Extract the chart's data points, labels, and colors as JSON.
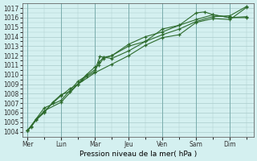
{
  "background_color": "#d4f0f0",
  "grid_color": "#aacccc",
  "line_color": "#2d6b2d",
  "ylabel_values": [
    1004,
    1005,
    1006,
    1007,
    1008,
    1009,
    1010,
    1011,
    1012,
    1013,
    1014,
    1015,
    1016,
    1017
  ],
  "ylim": [
    1003.5,
    1017.5
  ],
  "x_tick_positions": [
    0,
    1,
    2,
    3,
    4,
    5,
    6
  ],
  "x_tick_labels": [
    "Mer",
    "Lun",
    "Mar",
    "Jeu",
    "Ven",
    "Sam",
    "Dim"
  ],
  "xlabel": "Pression niveau de la mer( hPa )",
  "series": [
    {
      "x": [
        0.0,
        0.12,
        0.25,
        0.5,
        0.75,
        1.0,
        1.25,
        1.5,
        1.62,
        1.75,
        2.0,
        2.12,
        2.25,
        2.5,
        3.0,
        3.5,
        4.0,
        4.5,
        5.0,
        5.5,
        6.0,
        6.5
      ],
      "y": [
        1004.1,
        1004.5,
        1005.3,
        1006.1,
        1007.0,
        1007.8,
        1008.5,
        1009.0,
        1009.5,
        1010.0,
        1010.8,
        1011.0,
        1011.7,
        1012.0,
        1013.0,
        1013.5,
        1014.2,
        1014.8,
        1015.6,
        1016.1,
        1016.2,
        1017.2
      ]
    },
    {
      "x": [
        0.0,
        0.12,
        0.25,
        0.5,
        0.75,
        1.0,
        1.25,
        1.5,
        1.75,
        2.0,
        2.12,
        2.25,
        2.5,
        3.0,
        3.5,
        4.0,
        4.5,
        5.0,
        5.5,
        6.0,
        6.5
      ],
      "y": [
        1004.1,
        1004.6,
        1005.2,
        1006.0,
        1007.1,
        1007.9,
        1008.2,
        1009.0,
        1009.8,
        1010.3,
        1011.3,
        1011.8,
        1012.0,
        1013.2,
        1014.0,
        1014.5,
        1015.2,
        1015.8,
        1016.3,
        1016.0,
        1016.1
      ]
    },
    {
      "x": [
        0.0,
        0.5,
        1.0,
        1.5,
        2.0,
        2.15,
        2.5,
        3.0,
        3.5,
        4.0,
        4.5,
        5.0,
        5.25,
        5.5,
        6.0,
        6.5
      ],
      "y": [
        1004.1,
        1006.5,
        1007.3,
        1009.3,
        1010.5,
        1011.9,
        1011.7,
        1012.5,
        1013.5,
        1014.8,
        1015.2,
        1016.5,
        1016.6,
        1016.3,
        1016.0,
        1016.0
      ]
    },
    {
      "x": [
        0.0,
        0.5,
        1.0,
        1.5,
        2.0,
        2.5,
        3.0,
        3.5,
        4.0,
        4.5,
        5.0,
        5.5,
        6.0,
        6.5
      ],
      "y": [
        1004.1,
        1006.2,
        1007.1,
        1009.0,
        1010.2,
        1011.1,
        1012.0,
        1013.1,
        1013.9,
        1014.2,
        1015.5,
        1015.9,
        1015.8,
        1017.1
      ]
    }
  ],
  "figsize": [
    3.2,
    2.0
  ],
  "dpi": 100
}
